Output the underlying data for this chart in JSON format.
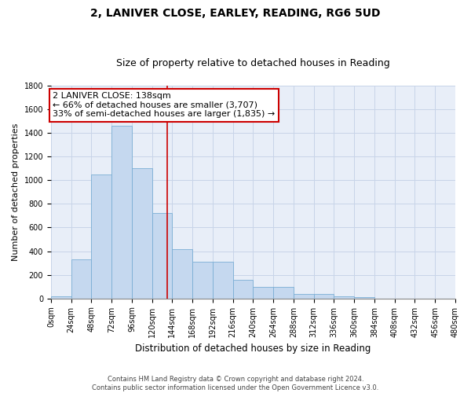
{
  "title_line1": "2, LANIVER CLOSE, EARLEY, READING, RG6 5UD",
  "title_line2": "Size of property relative to detached houses in Reading",
  "xlabel": "Distribution of detached houses by size in Reading",
  "ylabel": "Number of detached properties",
  "bar_values": [
    20,
    330,
    1050,
    1460,
    1100,
    720,
    420,
    310,
    310,
    160,
    100,
    100,
    40,
    40,
    15,
    10,
    0,
    0,
    0,
    0
  ],
  "bin_edges": [
    0,
    24,
    48,
    72,
    96,
    120,
    144,
    168,
    192,
    216,
    240,
    264,
    288,
    312,
    336,
    360,
    384,
    408,
    432,
    456,
    480
  ],
  "bar_color": "#c5d8ef",
  "bar_edge_color": "#7aaed4",
  "grid_color": "#c8d4e8",
  "background_color": "#e8eef8",
  "property_size": 138,
  "annotation_line1": "2 LANIVER CLOSE: 138sqm",
  "annotation_line2": "← 66% of detached houses are smaller (3,707)",
  "annotation_line3": "33% of semi-detached houses are larger (1,835) →",
  "vline_color": "#cc0000",
  "vline_x": 138,
  "ylim": [
    0,
    1800
  ],
  "yticks": [
    0,
    200,
    400,
    600,
    800,
    1000,
    1200,
    1400,
    1600,
    1800
  ],
  "footer_line1": "Contains HM Land Registry data © Crown copyright and database right 2024.",
  "footer_line2": "Contains public sector information licensed under the Open Government Licence v3.0.",
  "annotation_box_color": "#ffffff",
  "annotation_box_edge": "#cc0000",
  "title_fontsize": 10,
  "subtitle_fontsize": 9,
  "tick_fontsize": 7,
  "ylabel_fontsize": 8,
  "xlabel_fontsize": 8.5,
  "annotation_fontsize": 8
}
